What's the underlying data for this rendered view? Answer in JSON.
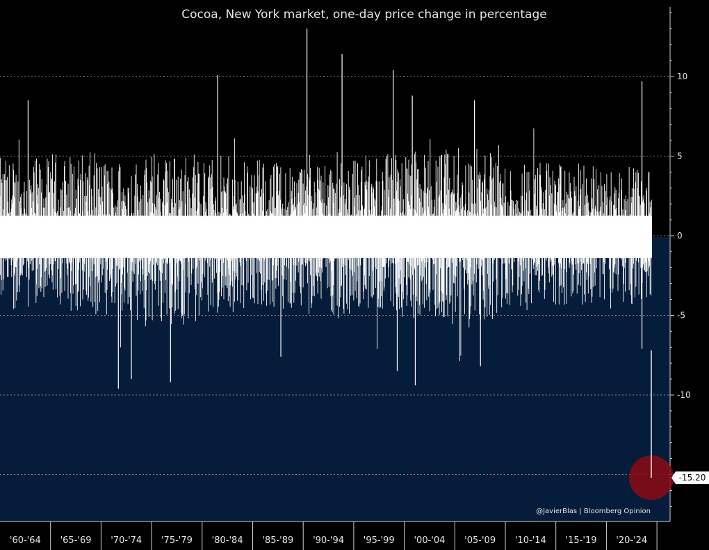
{
  "chart_data": {
    "type": "area",
    "title": "Cocoa, New York market, one-day price change in percentage",
    "xlabel": "",
    "ylabel": "",
    "ylim": [
      -17.5,
      14.5
    ],
    "y_ticks": [
      10,
      5,
      0,
      -5,
      -10
    ],
    "y_tick_labels": [
      "10",
      "5",
      "0",
      "-5",
      "-10"
    ],
    "x_period_labels": [
      "'60-'64",
      "'65-'69",
      "'70-'74",
      "'75-'79",
      "'80-'84",
      "'85-'89",
      "'90-'94",
      "'95-'99",
      "'00-'04",
      "'05-'09",
      "'10-'14",
      "'15-'19",
      "'20-'24"
    ],
    "x_start_year": 1960,
    "x_end_year": 2024,
    "grid": true,
    "envelope": {
      "description": "approximate daily max gain / max loss band per period",
      "periods": [
        "'60-'64",
        "'65-'69",
        "'70-'74",
        "'75-'79",
        "'80-'84",
        "'85-'89",
        "'90-'94",
        "'95-'99",
        "'00-'04",
        "'05-'09",
        "'10-'14",
        "'15-'19",
        "'20-'24"
      ],
      "typical_high": [
        3.5,
        3.8,
        3.6,
        3.9,
        3.6,
        3.4,
        3.8,
        3.7,
        4.0,
        4.2,
        3.5,
        3.2,
        3.0
      ],
      "typical_low": [
        -3.2,
        -3.6,
        -4.2,
        -4.4,
        -3.5,
        -3.3,
        -3.6,
        -3.4,
        -3.9,
        -4.3,
        -3.3,
        -3.0,
        -3.0
      ]
    },
    "notable_gains": [
      {
        "year": 1962.8,
        "value": 8.5
      },
      {
        "year": 1981.7,
        "value": 10.1
      },
      {
        "year": 1990.6,
        "value": 13.0
      },
      {
        "year": 1994.1,
        "value": 11.4
      },
      {
        "year": 1999.2,
        "value": 10.4
      },
      {
        "year": 2001.1,
        "value": 8.8
      },
      {
        "year": 2007.3,
        "value": 8.5
      },
      {
        "year": 2024.0,
        "value": 9.7
      }
    ],
    "notable_losses": [
      {
        "year": 1971.8,
        "value": -9.6
      },
      {
        "year": 1973.1,
        "value": -9.0
      },
      {
        "year": 1977.0,
        "value": -9.2
      },
      {
        "year": 1988.0,
        "value": -7.6
      },
      {
        "year": 1999.6,
        "value": -8.5
      },
      {
        "year": 2001.4,
        "value": -9.4
      },
      {
        "year": 2007.9,
        "value": -8.2
      },
      {
        "year": 2024.0,
        "value": -7.1
      }
    ],
    "callout": {
      "label": "-15.20",
      "value": -15.2
    },
    "credit": "@JavierBlas | Bloomberg Opinion"
  },
  "colors": {
    "background_top": "#000000",
    "area_fill": "#051d3a",
    "bars": "#ffffff",
    "grid": "#8a8a8a",
    "axis": "#d0d0d0",
    "text": "#e6e6e6",
    "callout_circle": "#8b0a14",
    "callout_box": "#ffffff"
  }
}
